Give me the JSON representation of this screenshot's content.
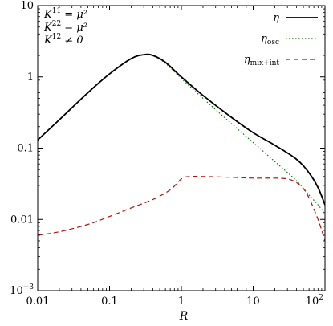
{
  "chart_data": {
    "type": "line",
    "xscale": "log",
    "yscale": "log",
    "xlim": [
      0.01,
      100
    ],
    "ylim": [
      0.001,
      10
    ],
    "xlabel": "R",
    "ylabel": "",
    "title": "",
    "grid": false,
    "legend_position": "top-right",
    "x_ticks": [
      {
        "value": 0.01,
        "label": "0.01"
      },
      {
        "value": 0.1,
        "label": "0.1"
      },
      {
        "value": 1,
        "label": "1"
      },
      {
        "value": 10,
        "label": "10"
      },
      {
        "value": 100,
        "label": "10",
        "sup": "2"
      }
    ],
    "y_ticks": [
      {
        "value": 0.001,
        "label": "10",
        "sup": "−3"
      },
      {
        "value": 0.01,
        "label": "0.01"
      },
      {
        "value": 0.1,
        "label": "0.1"
      },
      {
        "value": 1,
        "label": "1"
      },
      {
        "value": 10,
        "label": "10"
      }
    ],
    "annotations": [
      {
        "base": "K",
        "sup": "11",
        "rest": " = μ²"
      },
      {
        "base": "K",
        "sup": "22",
        "rest": " = μ²"
      },
      {
        "base": "K",
        "sup": "12",
        "rest": " ≠ 0"
      }
    ],
    "series": [
      {
        "key": "eta",
        "name": "η",
        "name_sub": "",
        "color": "#000000",
        "style": "solid",
        "x": [
          0.01,
          0.02,
          0.05,
          0.1,
          0.2,
          0.3,
          0.4,
          0.6,
          1,
          2,
          5,
          10,
          20,
          40,
          60,
          80,
          100
        ],
        "y": [
          0.13,
          0.25,
          0.6,
          1.1,
          1.8,
          2.05,
          2.0,
          1.6,
          1.0,
          0.55,
          0.27,
          0.165,
          0.11,
          0.07,
          0.045,
          0.028,
          0.016
        ]
      },
      {
        "key": "osc",
        "name": "η",
        "name_sub": "osc",
        "color": "#0a7d0a",
        "style": "dotted",
        "x": [
          0.01,
          0.02,
          0.05,
          0.1,
          0.2,
          0.3,
          0.4,
          0.6,
          1,
          2,
          5,
          10,
          20,
          40,
          60,
          80,
          100
        ],
        "y": [
          0.13,
          0.25,
          0.6,
          1.1,
          1.8,
          2.05,
          2.0,
          1.55,
          0.95,
          0.5,
          0.22,
          0.12,
          0.065,
          0.035,
          0.022,
          0.016,
          0.012
        ]
      },
      {
        "key": "mixint",
        "name": "η",
        "name_sub": "mix+int",
        "color": "#b01010",
        "style": "dashed",
        "x": [
          0.01,
          0.02,
          0.05,
          0.1,
          0.2,
          0.4,
          0.7,
          1.0,
          1.3,
          2,
          5,
          10,
          20,
          30,
          40,
          50,
          60,
          80,
          100
        ],
        "y": [
          0.006,
          0.0067,
          0.0085,
          0.011,
          0.0145,
          0.019,
          0.026,
          0.037,
          0.04,
          0.04,
          0.039,
          0.038,
          0.038,
          0.037,
          0.033,
          0.027,
          0.02,
          0.01,
          0.005
        ]
      }
    ]
  }
}
